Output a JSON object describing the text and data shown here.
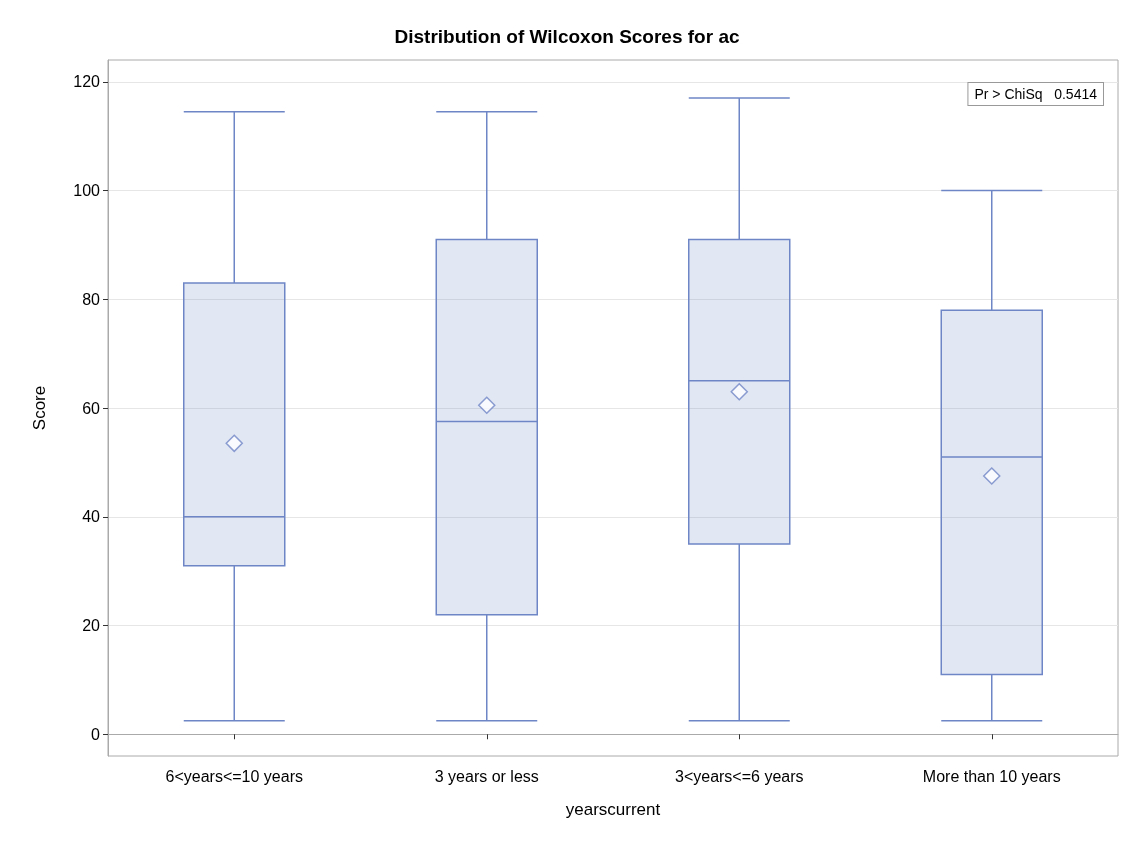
{
  "chart_data": {
    "type": "box",
    "title": "Distribution of Wilcoxon Scores for ac",
    "xlabel": "yearscurrent",
    "ylabel": "Score",
    "categories": [
      "6<years<=10 years",
      "3 years or less",
      "3<years<=6 years",
      "More than 10 years"
    ],
    "series": [
      {
        "color": "#6f86c6",
        "boxes": [
          {
            "low": 2.5,
            "q1": 31,
            "median": 40,
            "q3": 83,
            "high": 114.5,
            "mean": 53.5
          },
          {
            "low": 2.5,
            "q1": 22,
            "median": 57.5,
            "q3": 91,
            "high": 114.5,
            "mean": 60.5
          },
          {
            "low": 2.5,
            "q1": 35,
            "median": 65,
            "q3": 91,
            "high": 117,
            "mean": 63
          },
          {
            "low": 2.5,
            "q1": 11,
            "median": 51,
            "q3": 78,
            "high": 100,
            "mean": 47.5
          }
        ]
      }
    ],
    "ylim": [
      -4,
      124
    ],
    "yticks": [
      0,
      20,
      40,
      60,
      80,
      100,
      120
    ],
    "grid": "y",
    "marker": "diamond",
    "annotations": [
      "Pr > ChiSq   0.5414"
    ]
  }
}
